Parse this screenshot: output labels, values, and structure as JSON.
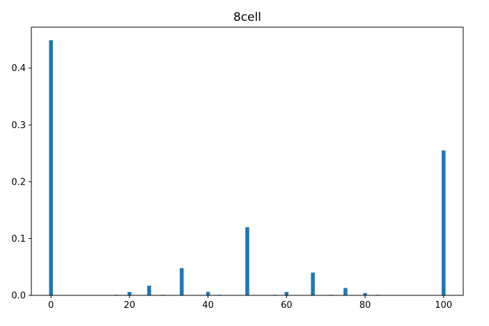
{
  "chart_data": {
    "type": "bar",
    "title": "8cell",
    "xlabel": "",
    "ylabel": "",
    "xlim": [
      -5,
      105
    ],
    "ylim": [
      0,
      0.472
    ],
    "grid": false,
    "bar_color": "#1f77b4",
    "x_ticks": [
      0,
      20,
      40,
      60,
      80,
      100
    ],
    "x_tick_labels": [
      "0",
      "20",
      "40",
      "60",
      "80",
      "100"
    ],
    "y_ticks": [
      0.0,
      0.1,
      0.2,
      0.3,
      0.4
    ],
    "y_tick_labels": [
      "0.0",
      "0.1",
      "0.2",
      "0.3",
      "0.4"
    ],
    "series": [
      {
        "x": [
          0,
          16.7,
          20,
          25,
          28.6,
          33.3,
          40,
          42.9,
          50,
          57.1,
          60,
          66.7,
          71.4,
          75,
          80,
          83.3,
          100
        ],
        "values": [
          0.449,
          0.001,
          0.006,
          0.017,
          0.001,
          0.048,
          0.006,
          0.001,
          0.12,
          0.001,
          0.006,
          0.04,
          0.001,
          0.013,
          0.004,
          0.001,
          0.255
        ]
      }
    ]
  }
}
